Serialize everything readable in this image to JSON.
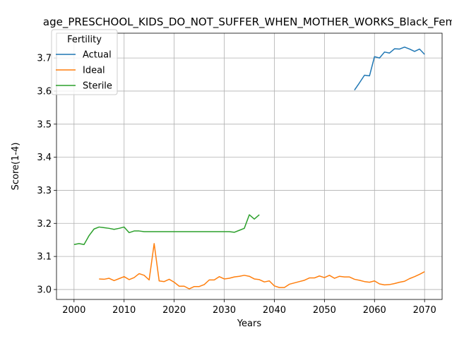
{
  "chart_data": {
    "type": "line",
    "title": "age_PRESCHOOL_KIDS_DO_NOT_SUFFER_WHEN_MOTHER_WORKS_Black_Fem",
    "xlabel": "Years",
    "ylabel": "Score(1-4)",
    "xlim": [
      1996.5,
      2073.5
    ],
    "ylim": [
      2.97,
      3.775
    ],
    "xticks": [
      2000,
      2010,
      2020,
      2030,
      2040,
      2050,
      2060,
      2070
    ],
    "yticks": [
      3.0,
      3.1,
      3.2,
      3.3,
      3.4,
      3.5,
      3.6,
      3.7
    ],
    "grid": true,
    "legend": {
      "title": "Fertility",
      "placement": "top-left"
    },
    "series": [
      {
        "name": "Actual",
        "color": "#1f77b4",
        "x": [
          2056,
          2057,
          2058,
          2059,
          2060,
          2061,
          2062,
          2063,
          2064,
          2065,
          2066,
          2067,
          2068,
          2069,
          2070
        ],
        "y": [
          3.603,
          3.625,
          3.648,
          3.646,
          3.704,
          3.7,
          3.718,
          3.715,
          3.728,
          3.727,
          3.733,
          3.727,
          3.72,
          3.727,
          3.711
        ]
      },
      {
        "name": "Ideal",
        "color": "#ff7f0e",
        "x": [
          2005,
          2006,
          2007,
          2008,
          2009,
          2010,
          2011,
          2012,
          2013,
          2014,
          2015,
          2016,
          2017,
          2018,
          2019,
          2020,
          2021,
          2022,
          2023,
          2024,
          2025,
          2026,
          2027,
          2028,
          2029,
          2030,
          2031,
          2032,
          2033,
          2034,
          2035,
          2036,
          2037,
          2038,
          2039,
          2040,
          2041,
          2042,
          2043,
          2044,
          2045,
          2046,
          2047,
          2048,
          2049,
          2050,
          2051,
          2052,
          2053,
          2054,
          2055,
          2056,
          2057,
          2058,
          2059,
          2060,
          2061,
          2062,
          2063,
          2064,
          2065,
          2066,
          2067,
          2068,
          2069,
          2070
        ],
        "y": [
          3.032,
          3.031,
          3.034,
          3.027,
          3.033,
          3.039,
          3.03,
          3.036,
          3.048,
          3.043,
          3.029,
          3.139,
          3.026,
          3.024,
          3.031,
          3.022,
          3.01,
          3.01,
          3.002,
          3.009,
          3.009,
          3.015,
          3.029,
          3.029,
          3.039,
          3.032,
          3.034,
          3.038,
          3.04,
          3.043,
          3.04,
          3.032,
          3.03,
          3.023,
          3.026,
          3.011,
          3.006,
          3.006,
          3.016,
          3.02,
          3.024,
          3.028,
          3.035,
          3.035,
          3.041,
          3.036,
          3.043,
          3.034,
          3.04,
          3.038,
          3.038,
          3.031,
          3.028,
          3.024,
          3.022,
          3.026,
          3.017,
          3.014,
          3.015,
          3.018,
          3.022,
          3.025,
          3.033,
          3.039,
          3.046,
          3.054
        ]
      },
      {
        "name": "Sterile",
        "color": "#2ca02c",
        "x": [
          2000,
          2001,
          2002,
          2003,
          2004,
          2005,
          2006,
          2007,
          2008,
          2009,
          2010,
          2011,
          2012,
          2013,
          2014,
          2015,
          2016,
          2017,
          2018,
          2019,
          2020,
          2021,
          2022,
          2023,
          2024,
          2025,
          2026,
          2027,
          2028,
          2029,
          2030,
          2031,
          2032,
          2033,
          2034,
          2035,
          2036,
          2037
        ],
        "y": [
          3.136,
          3.139,
          3.136,
          3.163,
          3.183,
          3.189,
          3.187,
          3.185,
          3.182,
          3.185,
          3.189,
          3.172,
          3.177,
          3.177,
          3.175,
          3.175,
          3.175,
          3.175,
          3.175,
          3.175,
          3.175,
          3.175,
          3.175,
          3.175,
          3.175,
          3.175,
          3.175,
          3.175,
          3.175,
          3.175,
          3.175,
          3.175,
          3.173,
          3.179,
          3.185,
          3.226,
          3.213,
          3.226
        ]
      }
    ]
  }
}
